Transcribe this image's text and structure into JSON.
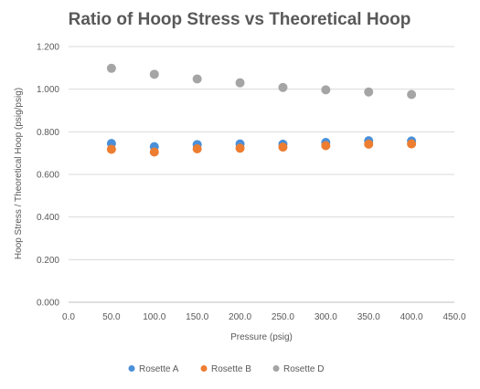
{
  "chart_data": {
    "type": "scatter",
    "title": "Ratio of Hoop Stress vs Theoretical Hoop",
    "xlabel": "Pressure (psig)",
    "ylabel": "Hoop Stress / Theoretical Hoop (psig/psig)",
    "xlim": [
      0,
      450
    ],
    "ylim": [
      0,
      1.2
    ],
    "x_ticks": [
      "0.0",
      "50.0",
      "100.0",
      "150.0",
      "200.0",
      "250.0",
      "300.0",
      "350.0",
      "400.0",
      "450.0"
    ],
    "y_ticks": [
      "0.000",
      "0.200",
      "0.400",
      "0.600",
      "0.800",
      "1.000",
      "1.200"
    ],
    "grid": true,
    "legend_position": "bottom",
    "x": [
      50,
      100,
      150,
      200,
      250,
      300,
      350,
      400
    ],
    "series": [
      {
        "name": "Rosette A",
        "color": "#4a90d9",
        "values": [
          0.745,
          0.73,
          0.74,
          0.743,
          0.742,
          0.75,
          0.758,
          0.757
        ]
      },
      {
        "name": "Rosette B",
        "color": "#ed7d31",
        "values": [
          0.718,
          0.705,
          0.72,
          0.723,
          0.728,
          0.735,
          0.742,
          0.743
        ]
      },
      {
        "name": "Rosette D",
        "color": "#a5a5a5",
        "values": [
          1.098,
          1.07,
          1.048,
          1.03,
          1.008,
          0.997,
          0.987,
          0.975
        ]
      }
    ]
  }
}
